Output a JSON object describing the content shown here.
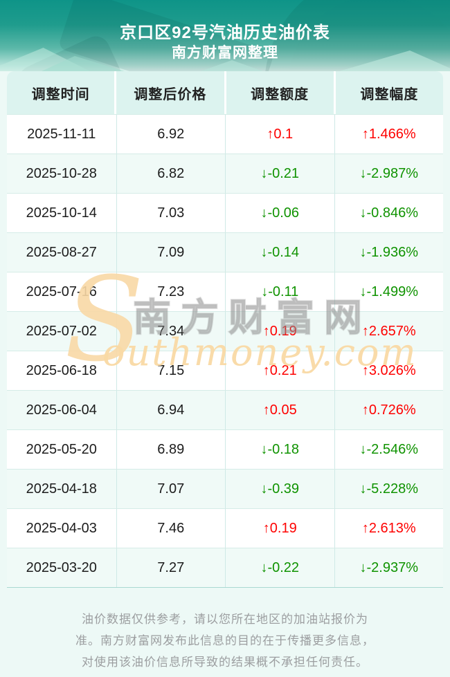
{
  "header": {
    "title": "京口区92号汽油历史油价表",
    "subtitle": "南方财富网整理"
  },
  "table": {
    "columns": [
      "调整时间",
      "调整后价格",
      "调整额度",
      "调整幅度"
    ],
    "rows": [
      {
        "date": "2025-11-11",
        "price": "6.92",
        "change": "↑0.1",
        "percent": "↑1.466%",
        "direction": "up"
      },
      {
        "date": "2025-10-28",
        "price": "6.82",
        "change": "↓-0.21",
        "percent": "↓-2.987%",
        "direction": "down"
      },
      {
        "date": "2025-10-14",
        "price": "7.03",
        "change": "↓-0.06",
        "percent": "↓-0.846%",
        "direction": "down"
      },
      {
        "date": "2025-08-27",
        "price": "7.09",
        "change": "↓-0.14",
        "percent": "↓-1.936%",
        "direction": "down"
      },
      {
        "date": "2025-07-16",
        "price": "7.23",
        "change": "↓-0.11",
        "percent": "↓-1.499%",
        "direction": "down"
      },
      {
        "date": "2025-07-02",
        "price": "7.34",
        "change": "↑0.19",
        "percent": "↑2.657%",
        "direction": "up"
      },
      {
        "date": "2025-06-18",
        "price": "7.15",
        "change": "↑0.21",
        "percent": "↑3.026%",
        "direction": "up"
      },
      {
        "date": "2025-06-04",
        "price": "6.94",
        "change": "↑0.05",
        "percent": "↑0.726%",
        "direction": "up"
      },
      {
        "date": "2025-05-20",
        "price": "6.89",
        "change": "↓-0.18",
        "percent": "↓-2.546%",
        "direction": "down"
      },
      {
        "date": "2025-04-18",
        "price": "7.07",
        "change": "↓-0.39",
        "percent": "↓-5.228%",
        "direction": "down"
      },
      {
        "date": "2025-04-03",
        "price": "7.46",
        "change": "↑0.19",
        "percent": "↑2.613%",
        "direction": "up"
      },
      {
        "date": "2025-03-20",
        "price": "7.27",
        "change": "↓-0.22",
        "percent": "↓-2.937%",
        "direction": "down"
      }
    ]
  },
  "watermark": {
    "initial": "S",
    "english": "outhmoney.com",
    "chinese": "南方财富网"
  },
  "footer": {
    "disclaimer": "油价数据仅供参考，请以您所在地区的加油站报价为准。南方财富网发布此信息的目的在于传播更多信息，对使用该油价信息所导致的结果概不承担任何责任。"
  },
  "colors": {
    "up": "#fe0100",
    "down": "#0f9300",
    "banner_teal": "#0e9488",
    "header_cell_bg": "#dcf3ef"
  }
}
